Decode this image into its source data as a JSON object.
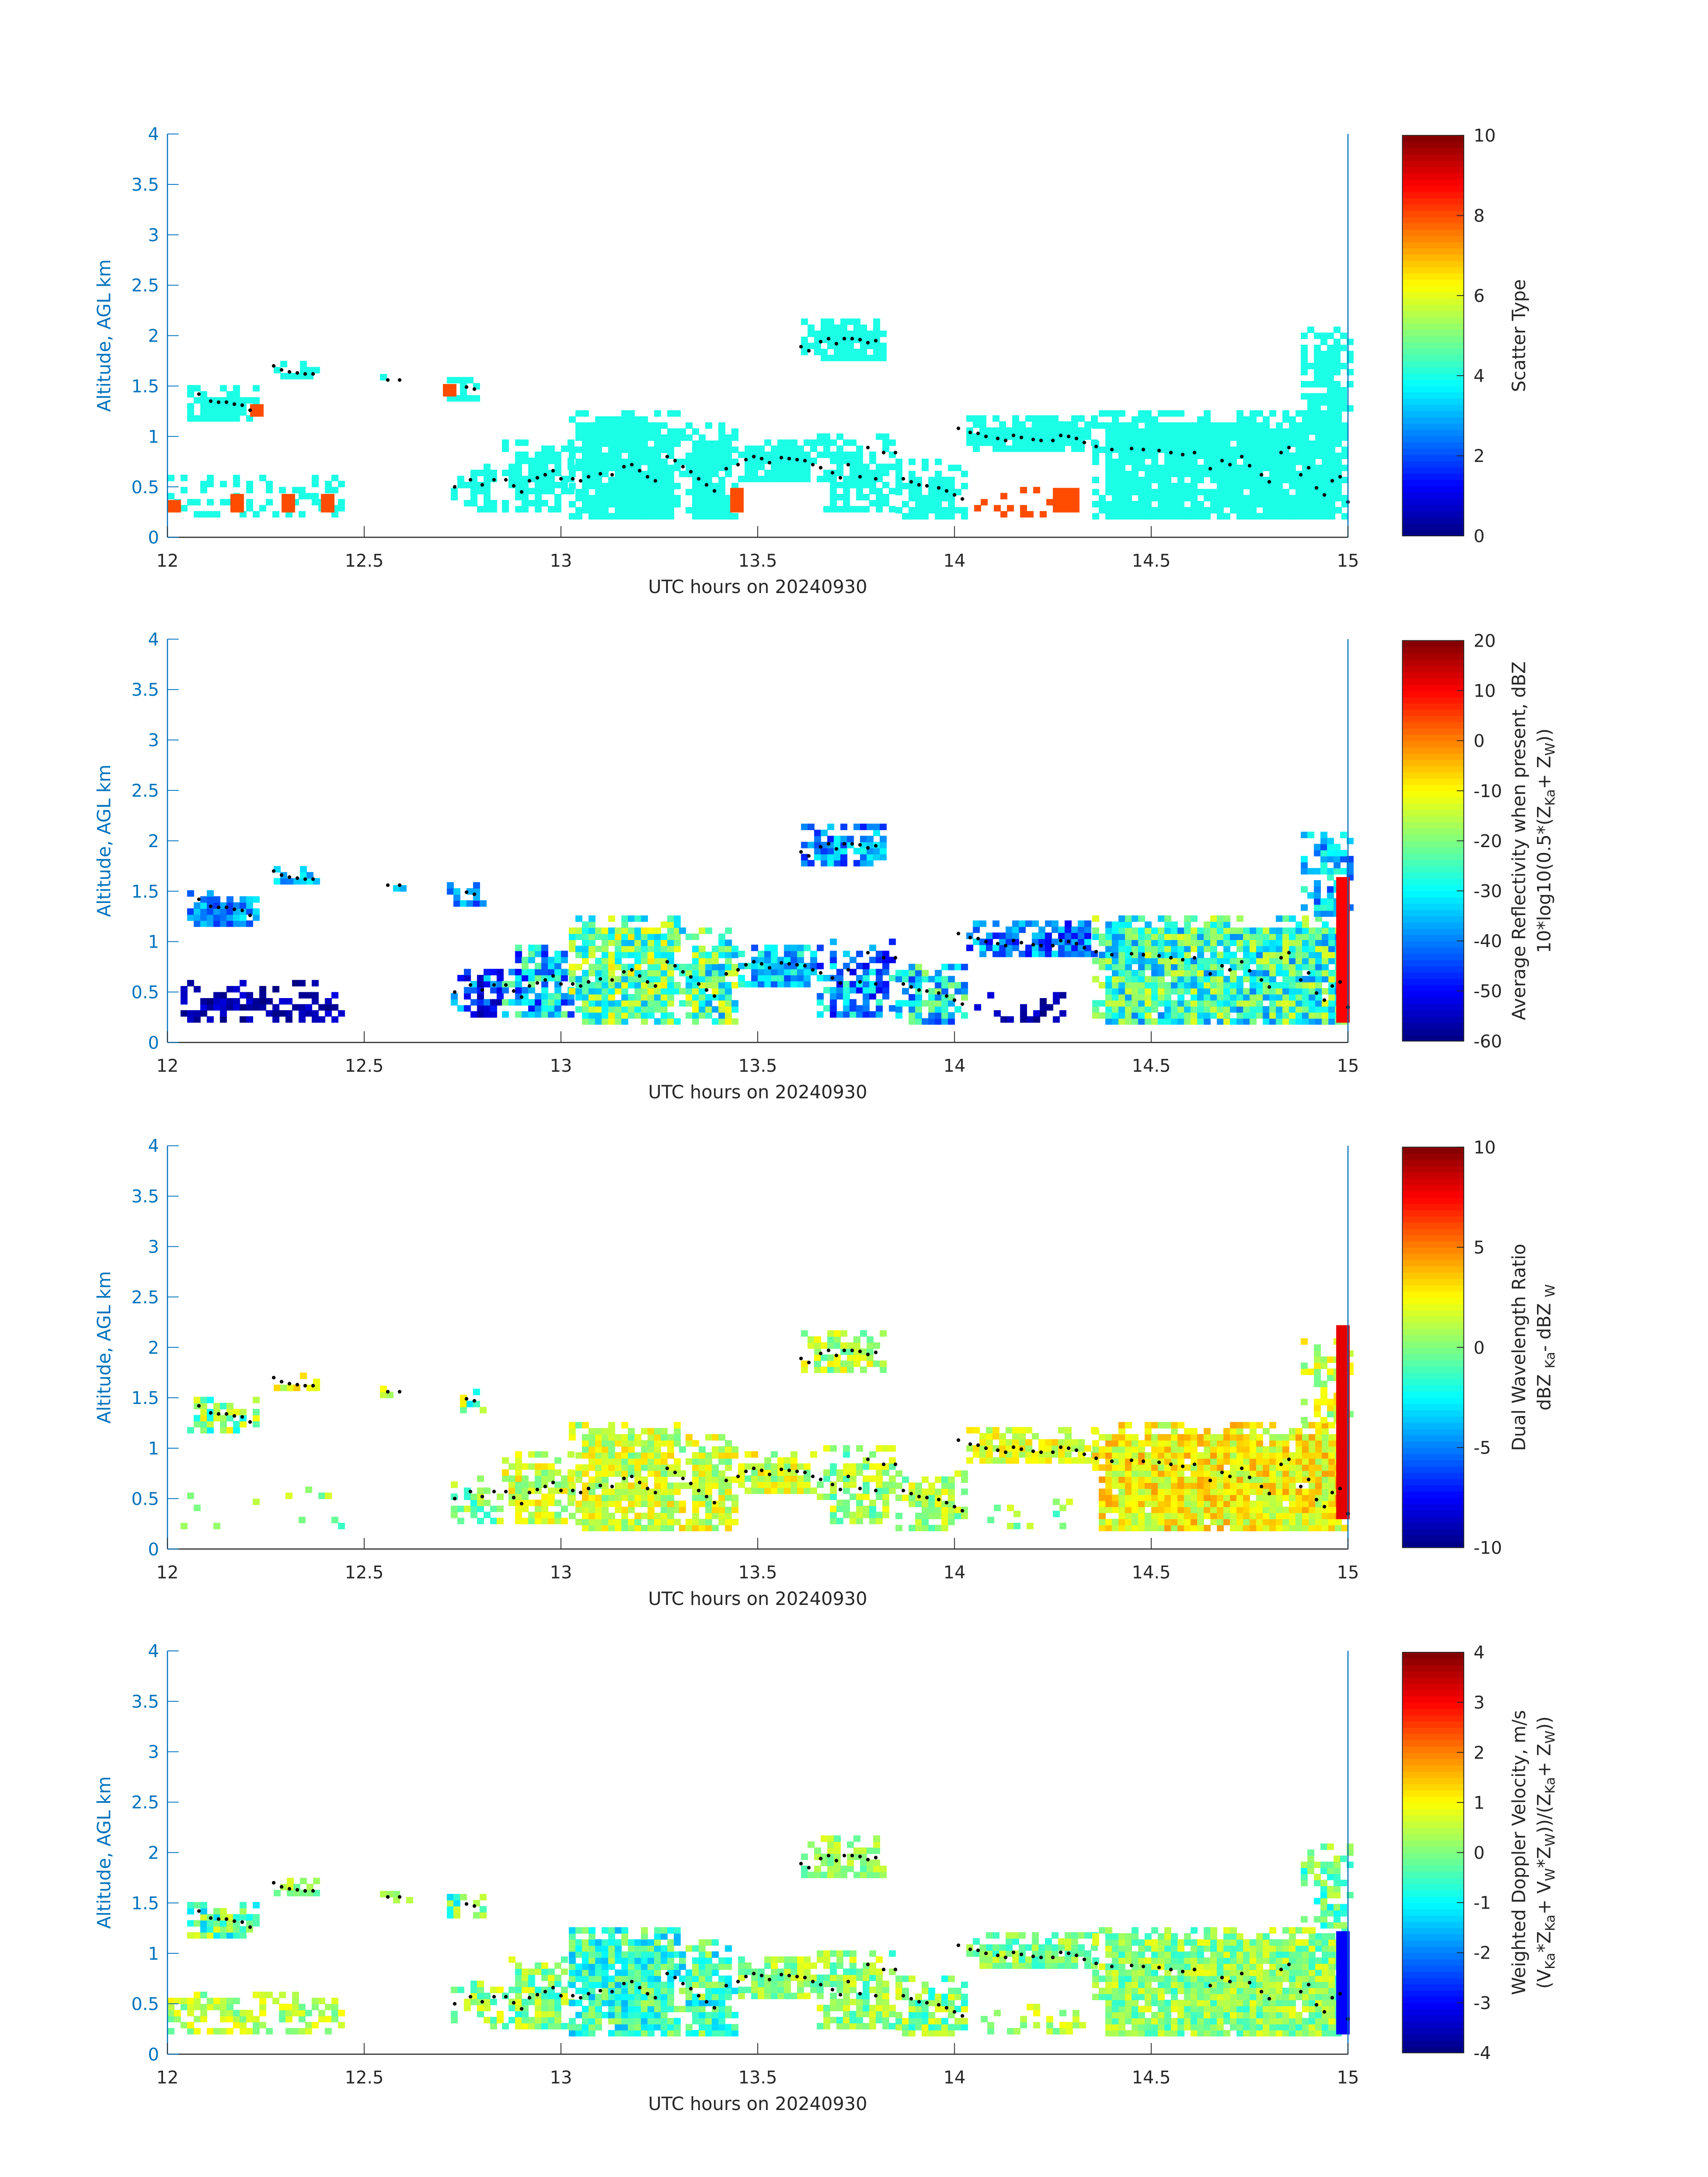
{
  "chart_data": [
    {
      "type": "heatmap",
      "id": "scatter-type",
      "xlabel": "UTC hours on 20240930",
      "ylabel": "Altitude, AGL km",
      "xlim": [
        12,
        15
      ],
      "ylim": [
        0,
        4
      ],
      "xticks": [
        12,
        12.5,
        13,
        13.5,
        14,
        14.5,
        15
      ],
      "yticks": [
        0,
        0.5,
        1,
        1.5,
        2,
        2.5,
        3,
        3.5,
        4
      ],
      "colorbar": {
        "label_parts": [
          [
            "Scatter Type",
            ""
          ]
        ],
        "clim": [
          0,
          10
        ],
        "ticks": [
          0,
          2,
          4,
          6,
          8,
          10
        ]
      },
      "region_values": [
        [
          4,
          0,
          0.95
        ],
        [
          4,
          0,
          0.95
        ],
        [
          4,
          0,
          0.7
        ],
        [
          4,
          0,
          0.85
        ],
        [
          4,
          0,
          0.85
        ],
        [
          4,
          0,
          0.6
        ],
        [
          4,
          0,
          0.8
        ],
        [
          4,
          0,
          0.95
        ],
        [
          4,
          0,
          0.9
        ],
        [
          4,
          0,
          0.95
        ],
        [
          4,
          0,
          0.75
        ],
        [
          4,
          0,
          0.85
        ],
        [
          4,
          0,
          0.9
        ],
        [
          4,
          0,
          0.95
        ],
        [
          4,
          0,
          0.8
        ],
        [
          4,
          0,
          0.3
        ],
        [
          8,
          0,
          0.3
        ]
      ],
      "extra_regions": [
        {
          "t": [
            12.0,
            12.02
          ],
          "h": [
            0.25,
            0.35
          ],
          "value": 8
        },
        {
          "t": [
            12.16,
            12.19
          ],
          "h": [
            0.25,
            0.4
          ],
          "value": 8
        },
        {
          "t": [
            12.29,
            12.32
          ],
          "h": [
            0.25,
            0.4
          ],
          "value": 8
        },
        {
          "t": [
            12.39,
            12.42
          ],
          "h": [
            0.25,
            0.4
          ],
          "value": 8
        },
        {
          "t": [
            12.21,
            12.23
          ],
          "h": [
            1.2,
            1.3
          ],
          "value": 8
        },
        {
          "t": [
            12.7,
            12.72
          ],
          "h": [
            1.4,
            1.5
          ],
          "value": 8
        },
        {
          "t": [
            13.43,
            13.45
          ],
          "h": [
            0.25,
            0.45
          ],
          "value": 8
        },
        {
          "t": [
            14.25,
            14.31
          ],
          "h": [
            0.25,
            0.45
          ],
          "value": 8
        }
      ]
    },
    {
      "type": "heatmap",
      "id": "reflectivity",
      "xlabel": "UTC hours on 20240930",
      "ylabel": "Altitude, AGL km",
      "xlim": [
        12,
        15
      ],
      "ylim": [
        0,
        4
      ],
      "xticks": [
        12,
        12.5,
        13,
        13.5,
        14,
        14.5,
        15
      ],
      "yticks": [
        0,
        0.5,
        1,
        1.5,
        2,
        2.5,
        3,
        3.5,
        4
      ],
      "colorbar": {
        "label_parts": [
          [
            "Average Reflectivity when present, dBZ",
            ""
          ],
          [
            "10*log10(0.5*(Z",
            ""
          ],
          [
            "Ka",
            "sub"
          ],
          [
            " + Z",
            ""
          ],
          [
            "W",
            "sub"
          ],
          [
            "))",
            ""
          ]
        ],
        "line_break_after": 0,
        "clim": [
          -60,
          20
        ],
        "ticks": [
          -60,
          -50,
          -40,
          -30,
          -20,
          -10,
          0,
          10,
          20
        ]
      },
      "region_values": [
        [
          -38,
          8,
          0.95
        ],
        [
          -35,
          6,
          0.95
        ],
        [
          -38,
          6,
          0.7
        ],
        [
          -40,
          8,
          0.85
        ],
        [
          -38,
          10,
          0.85
        ],
        [
          -45,
          12,
          0.75
        ],
        [
          -35,
          15,
          0.85
        ],
        [
          -22,
          14,
          0.95
        ],
        [
          -24,
          15,
          0.9
        ],
        [
          -35,
          10,
          0.95
        ],
        [
          -38,
          14,
          0.75
        ],
        [
          -32,
          15,
          0.85
        ],
        [
          -40,
          10,
          0.9
        ],
        [
          -26,
          14,
          0.95
        ],
        [
          -35,
          10,
          0.8
        ],
        [
          -56,
          4,
          0.5
        ],
        [
          -56,
          4,
          0.45
        ]
      ],
      "extra_regions": [
        {
          "t": [
            14.97,
            15.0
          ],
          "h": [
            0.2,
            1.6
          ],
          "value": 10
        }
      ]
    },
    {
      "type": "heatmap",
      "id": "dual-wavelength-ratio",
      "xlabel": "UTC hours on 20240930",
      "ylabel": "Altitude, AGL km",
      "xlim": [
        12,
        15
      ],
      "ylim": [
        0,
        4
      ],
      "xticks": [
        12,
        12.5,
        13,
        13.5,
        14,
        14.5,
        15
      ],
      "yticks": [
        0,
        0.5,
        1,
        1.5,
        2,
        2.5,
        3,
        3.5,
        4
      ],
      "colorbar": {
        "label_parts": [
          [
            "Dual Wavelength Ratio",
            ""
          ],
          [
            "dBZ ",
            ""
          ],
          [
            "Ka",
            "sub"
          ],
          [
            " - dBZ ",
            ""
          ],
          [
            "W",
            "sub"
          ]
        ],
        "line_break_after": 0,
        "clim": [
          -10,
          10
        ],
        "ticks": [
          -10,
          -5,
          0,
          5,
          10
        ]
      },
      "region_values": [
        [
          0,
          3,
          0.85
        ],
        [
          2,
          1.5,
          0.9
        ],
        [
          1,
          2,
          0.5
        ],
        [
          0,
          3,
          0.7
        ],
        [
          1,
          2,
          0.75
        ],
        [
          0,
          2,
          0.5
        ],
        [
          1.5,
          2,
          0.8
        ],
        [
          1.5,
          2,
          0.9
        ],
        [
          1.5,
          2,
          0.85
        ],
        [
          1.5,
          2,
          0.9
        ],
        [
          0.5,
          2,
          0.7
        ],
        [
          1,
          2,
          0.8
        ],
        [
          2,
          1.5,
          0.9
        ],
        [
          2.5,
          2,
          0.95
        ],
        [
          1.5,
          2,
          0.6
        ],
        [
          0,
          2,
          0.08
        ],
        [
          0,
          2,
          0.25
        ]
      ],
      "extra_regions": [
        {
          "t": [
            14.97,
            15.0
          ],
          "h": [
            0.3,
            2.2
          ],
          "value": 8
        }
      ]
    },
    {
      "type": "heatmap",
      "id": "doppler-velocity",
      "xlabel": "UTC hours on 20240930",
      "ylabel": "Altitude, AGL km",
      "xlim": [
        12,
        15
      ],
      "ylim": [
        0,
        4
      ],
      "xticks": [
        12,
        12.5,
        13,
        13.5,
        14,
        14.5,
        15
      ],
      "yticks": [
        0,
        0.5,
        1,
        1.5,
        2,
        2.5,
        3,
        3.5,
        4
      ],
      "colorbar": {
        "label_parts": [
          [
            "Weighted Doppler Velocity, m/s",
            ""
          ],
          [
            "(V",
            ""
          ],
          [
            "Ka",
            "sub"
          ],
          [
            "*Z",
            ""
          ],
          [
            "Ka",
            "sub"
          ],
          [
            " + V",
            ""
          ],
          [
            "W",
            "sub"
          ],
          [
            "*Z",
            ""
          ],
          [
            "W",
            "sub"
          ],
          [
            "))/(Z",
            ""
          ],
          [
            "Ka",
            "sub"
          ],
          [
            " + Z",
            ""
          ],
          [
            "W",
            "sub"
          ],
          [
            "))",
            ""
          ]
        ],
        "line_break_after": 0,
        "clim": [
          -4,
          4
        ],
        "ticks": [
          -4,
          -3,
          -2,
          -1,
          0,
          1,
          2,
          3,
          4
        ]
      },
      "region_values": [
        [
          -0.3,
          1.2,
          0.95
        ],
        [
          0.2,
          0.6,
          0.95
        ],
        [
          0,
          0.6,
          0.7
        ],
        [
          -0.3,
          1,
          0.85
        ],
        [
          0.2,
          0.6,
          0.85
        ],
        [
          0.2,
          0.8,
          0.6
        ],
        [
          0.1,
          0.9,
          0.85
        ],
        [
          -0.6,
          1,
          0.95
        ],
        [
          -0.5,
          1.1,
          0.9
        ],
        [
          0.2,
          0.7,
          0.95
        ],
        [
          0.1,
          0.8,
          0.75
        ],
        [
          0,
          0.9,
          0.85
        ],
        [
          0,
          0.7,
          0.9
        ],
        [
          0.1,
          0.8,
          0.95
        ],
        [
          -0.3,
          0.9,
          0.8
        ],
        [
          0.4,
          0.7,
          0.5
        ],
        [
          0.4,
          0.6,
          0.45
        ]
      ],
      "extra_regions": [
        {
          "t": [
            14.97,
            15.0
          ],
          "h": [
            0.2,
            1.2
          ],
          "value": -3
        }
      ]
    }
  ],
  "regions": [
    {
      "t": [
        12.05,
        12.22
      ],
      "h": [
        1.15,
        1.5
      ]
    },
    {
      "t": [
        12.27,
        12.38
      ],
      "h": [
        1.57,
        1.74
      ]
    },
    {
      "t": [
        12.54,
        12.62
      ],
      "h": [
        1.5,
        1.62
      ]
    },
    {
      "t": [
        12.71,
        12.8
      ],
      "h": [
        1.35,
        1.55
      ]
    },
    {
      "t": [
        13.61,
        13.82
      ],
      "h": [
        1.75,
        2.15
      ]
    },
    {
      "t": [
        12.72,
        12.85
      ],
      "h": [
        0.25,
        0.72
      ]
    },
    {
      "t": [
        12.85,
        13.02
      ],
      "h": [
        0.25,
        0.95
      ]
    },
    {
      "t": [
        13.02,
        13.3
      ],
      "h": [
        0.18,
        1.25
      ]
    },
    {
      "t": [
        13.3,
        13.45
      ],
      "h": [
        0.18,
        1.1
      ]
    },
    {
      "t": [
        13.45,
        13.65
      ],
      "h": [
        0.55,
        0.95
      ]
    },
    {
      "t": [
        13.65,
        13.85
      ],
      "h": [
        0.25,
        1.0
      ]
    },
    {
      "t": [
        13.85,
        14.02
      ],
      "h": [
        0.18,
        0.75
      ]
    },
    {
      "t": [
        14.03,
        14.35
      ],
      "h": [
        0.85,
        1.2
      ]
    },
    {
      "t": [
        14.35,
        15.0
      ],
      "h": [
        0.18,
        1.25
      ]
    },
    {
      "t": [
        14.88,
        15.0
      ],
      "h": [
        1.25,
        2.05
      ]
    },
    {
      "t": [
        12.0,
        12.45
      ],
      "h": [
        0.2,
        0.6
      ]
    },
    {
      "t": [
        14.05,
        14.32
      ],
      "h": [
        0.2,
        0.45
      ]
    }
  ],
  "cloud_base_dots": [
    [
      12.08,
      1.42
    ],
    [
      12.11,
      1.35
    ],
    [
      12.13,
      1.34
    ],
    [
      12.15,
      1.34
    ],
    [
      12.17,
      1.32
    ],
    [
      12.19,
      1.31
    ],
    [
      12.21,
      1.26
    ],
    [
      12.27,
      1.7
    ],
    [
      12.29,
      1.66
    ],
    [
      12.31,
      1.64
    ],
    [
      12.33,
      1.63
    ],
    [
      12.35,
      1.62
    ],
    [
      12.37,
      1.62
    ],
    [
      12.56,
      1.56
    ],
    [
      12.59,
      1.56
    ],
    [
      12.76,
      1.49
    ],
    [
      12.78,
      1.47
    ],
    [
      12.73,
      0.5
    ],
    [
      12.77,
      0.57
    ],
    [
      12.8,
      0.52
    ],
    [
      12.83,
      0.57
    ],
    [
      12.86,
      0.57
    ],
    [
      12.88,
      0.51
    ],
    [
      12.9,
      0.45
    ],
    [
      12.92,
      0.56
    ],
    [
      12.94,
      0.59
    ],
    [
      12.96,
      0.62
    ],
    [
      12.98,
      0.66
    ],
    [
      13.0,
      0.58
    ],
    [
      13.03,
      0.58
    ],
    [
      13.05,
      0.56
    ],
    [
      13.07,
      0.6
    ],
    [
      13.1,
      0.63
    ],
    [
      13.13,
      0.62
    ],
    [
      13.16,
      0.7
    ],
    [
      13.18,
      0.72
    ],
    [
      13.2,
      0.66
    ],
    [
      13.22,
      0.6
    ],
    [
      13.24,
      0.56
    ],
    [
      13.27,
      0.8
    ],
    [
      13.29,
      0.76
    ],
    [
      13.31,
      0.7
    ],
    [
      13.33,
      0.65
    ],
    [
      13.35,
      0.58
    ],
    [
      13.37,
      0.52
    ],
    [
      13.39,
      0.46
    ],
    [
      13.42,
      0.68
    ],
    [
      13.45,
      0.72
    ],
    [
      13.47,
      0.77
    ],
    [
      13.49,
      0.8
    ],
    [
      13.51,
      0.78
    ],
    [
      13.53,
      0.74
    ],
    [
      13.56,
      0.79
    ],
    [
      13.58,
      0.78
    ],
    [
      13.6,
      0.77
    ],
    [
      13.62,
      0.76
    ],
    [
      13.64,
      0.72
    ],
    [
      13.66,
      0.69
    ],
    [
      13.69,
      0.64
    ],
    [
      13.71,
      0.59
    ],
    [
      13.73,
      0.72
    ],
    [
      13.76,
      0.6
    ],
    [
      13.78,
      0.89
    ],
    [
      13.8,
      0.58
    ],
    [
      13.82,
      0.84
    ],
    [
      13.85,
      0.84
    ],
    [
      13.87,
      0.58
    ],
    [
      13.89,
      0.55
    ],
    [
      13.91,
      0.52
    ],
    [
      13.93,
      0.51
    ],
    [
      13.96,
      0.49
    ],
    [
      13.98,
      0.46
    ],
    [
      14.0,
      0.42
    ],
    [
      14.02,
      0.38
    ],
    [
      13.61,
      1.89
    ],
    [
      13.63,
      1.85
    ],
    [
      13.66,
      1.94
    ],
    [
      13.68,
      1.97
    ],
    [
      13.7,
      1.92
    ],
    [
      13.72,
      1.97
    ],
    [
      13.74,
      1.97
    ],
    [
      13.76,
      1.96
    ],
    [
      13.78,
      1.93
    ],
    [
      13.8,
      1.95
    ],
    [
      14.01,
      1.08
    ],
    [
      14.04,
      1.04
    ],
    [
      14.06,
      1.03
    ],
    [
      14.08,
      1.0
    ],
    [
      14.11,
      0.98
    ],
    [
      14.13,
      0.96
    ],
    [
      14.15,
      1.01
    ],
    [
      14.17,
      0.99
    ],
    [
      14.2,
      0.97
    ],
    [
      14.22,
      0.96
    ],
    [
      14.25,
      0.96
    ],
    [
      14.27,
      1.01
    ],
    [
      14.29,
      1.0
    ],
    [
      14.31,
      0.98
    ],
    [
      14.33,
      0.94
    ],
    [
      14.36,
      0.9
    ],
    [
      14.4,
      0.87
    ],
    [
      14.45,
      0.88
    ],
    [
      14.48,
      0.87
    ],
    [
      14.52,
      0.86
    ],
    [
      14.55,
      0.84
    ],
    [
      14.58,
      0.82
    ],
    [
      14.61,
      0.84
    ],
    [
      14.65,
      0.68
    ],
    [
      14.68,
      0.76
    ],
    [
      14.7,
      0.72
    ],
    [
      14.73,
      0.8
    ],
    [
      14.75,
      0.71
    ],
    [
      14.78,
      0.62
    ],
    [
      14.8,
      0.55
    ],
    [
      14.83,
      0.84
    ],
    [
      14.85,
      0.89
    ],
    [
      14.88,
      0.62
    ],
    [
      14.9,
      0.69
    ],
    [
      14.92,
      0.49
    ],
    [
      14.94,
      0.42
    ],
    [
      14.96,
      0.56
    ],
    [
      14.98,
      0.6
    ],
    [
      15.0,
      0.35
    ]
  ]
}
